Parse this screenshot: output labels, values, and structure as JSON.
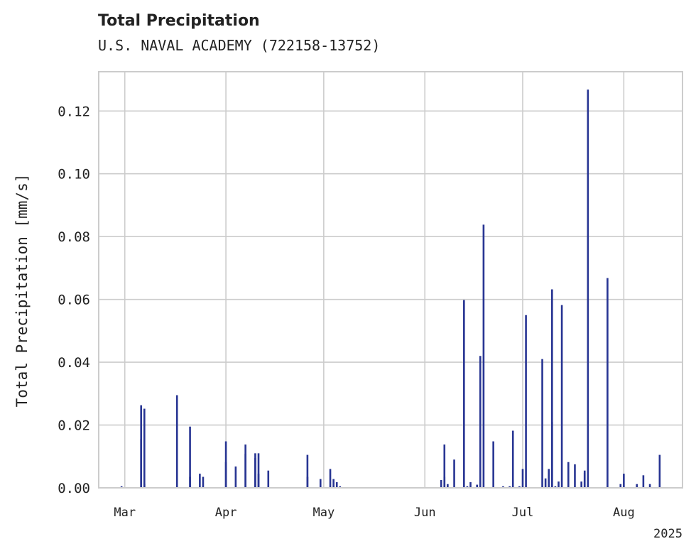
{
  "chart_data": {
    "type": "bar",
    "title": "Total Precipitation",
    "subtitle": "U.S. NAVAL ACADEMY (722158-13752)",
    "xlabel": "",
    "ylabel": "Total Precipitation [mm/s]",
    "year_label": "2025",
    "xlim": [
      "2025-02-21",
      "2025-08-19"
    ],
    "ylim": [
      0,
      0.1325
    ],
    "yticks": [
      0.0,
      0.02,
      0.04,
      0.06,
      0.08,
      0.1,
      0.12
    ],
    "ytick_labels": [
      "0.00",
      "0.02",
      "0.04",
      "0.06",
      "0.08",
      "0.10",
      "0.12"
    ],
    "xticks": [
      {
        "date": "2025-03-01",
        "label": "Mar"
      },
      {
        "date": "2025-04-01",
        "label": "Apr"
      },
      {
        "date": "2025-05-01",
        "label": "May"
      },
      {
        "date": "2025-06-01",
        "label": "Jun"
      },
      {
        "date": "2025-07-01",
        "label": "Jul"
      },
      {
        "date": "2025-08-01",
        "label": "Aug"
      }
    ],
    "grid": true,
    "bar_color": "#283593",
    "series": [
      {
        "x": [
          "2025-02-28",
          "2025-03-06",
          "2025-03-06",
          "2025-03-07",
          "2025-03-07",
          "2025-03-17",
          "2025-03-21",
          "2025-03-21",
          "2025-03-24",
          "2025-03-25",
          "2025-04-01",
          "2025-04-01",
          "2025-04-04",
          "2025-04-07",
          "2025-04-07",
          "2025-04-10",
          "2025-04-10",
          "2025-04-11",
          "2025-04-11",
          "2025-04-14",
          "2025-04-26",
          "2025-04-26",
          "2025-04-30",
          "2025-05-03",
          "2025-05-04",
          "2025-05-05",
          "2025-05-06",
          "2025-06-06",
          "2025-06-07",
          "2025-06-07",
          "2025-06-08",
          "2025-06-10",
          "2025-06-13",
          "2025-06-14",
          "2025-06-15",
          "2025-06-17",
          "2025-06-18",
          "2025-06-19",
          "2025-06-22",
          "2025-06-25",
          "2025-06-27",
          "2025-06-28",
          "2025-06-30",
          "2025-07-01",
          "2025-07-02",
          "2025-07-07",
          "2025-07-08",
          "2025-07-09",
          "2025-07-10",
          "2025-07-10",
          "2025-07-11",
          "2025-07-12",
          "2025-07-13",
          "2025-07-15",
          "2025-07-17",
          "2025-07-19",
          "2025-07-20",
          "2025-07-20",
          "2025-07-21",
          "2025-07-27",
          "2025-07-31",
          "2025-08-01",
          "2025-08-05",
          "2025-08-07",
          "2025-08-09",
          "2025-08-12",
          "2025-08-15"
        ],
        "y": [
          0.0005,
          0.0263,
          0.0155,
          0.0252,
          0.0013,
          0.0295,
          0.0195,
          0.0035,
          0.0045,
          0.0035,
          0.0148,
          0.0082,
          0.0068,
          0.0138,
          0.0108,
          0.0095,
          0.011,
          0.011,
          0.0045,
          0.0055,
          0.0035,
          0.0105,
          0.0028,
          0.006,
          0.0028,
          0.0018,
          0.0005,
          0.0025,
          0.0035,
          0.0138,
          0.0012,
          0.009,
          0.0598,
          0.0005,
          0.0018,
          0.001,
          0.042,
          0.0838,
          0.0148,
          0.0005,
          0.0005,
          0.0182,
          0.0005,
          0.006,
          0.055,
          0.041,
          0.003,
          0.006,
          0.021,
          0.0632,
          0.0005,
          0.002,
          0.0582,
          0.0082,
          0.0075,
          0.002,
          0.0055,
          0.0048,
          0.1268,
          0.0668,
          0.0012,
          0.0045,
          0.0012,
          0.004,
          0.0012,
          0.0105,
          0.0
        ]
      }
    ]
  }
}
